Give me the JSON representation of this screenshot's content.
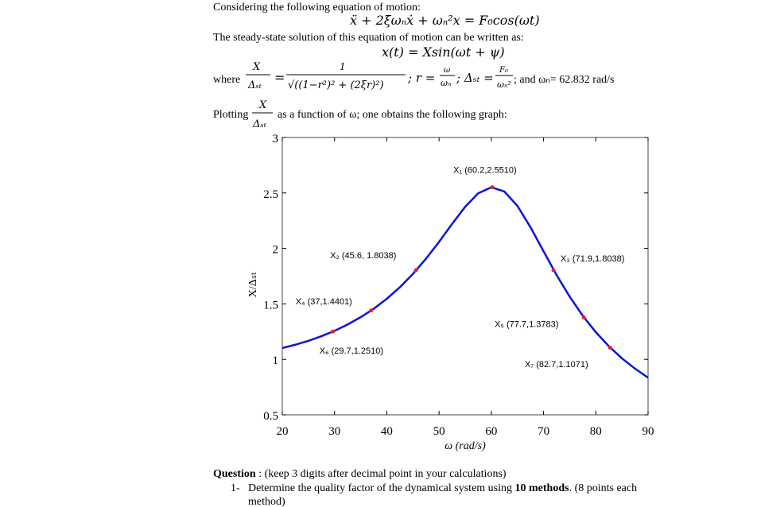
{
  "intro": "Considering the following equation of motion:",
  "equation_motion": "ẍ + 2ξωₙẋ + ωₙ²x = F₀cos(ωt)",
  "steady_state": "The steady-state solution of this equation of motion can be written as:",
  "solution": "x(t) = Xsin(ωt + ψ)",
  "where": {
    "label": "where",
    "lhs_num": "X",
    "lhs_den": "Δₛₜ",
    "eq": "=",
    "rhs_num": "1",
    "rhs_den": "√((1−r²)² + (2ξr)²)",
    "r_def": "; r =",
    "r_num": "ω",
    "r_den": "ωₙ",
    "delta_def": "; Δₛₜ =",
    "d_num": "F₀",
    "d_den": "ωₙ²",
    "tail": "; and ωₙ= 62.832 rad/s"
  },
  "plotting": {
    "label": "Plotting",
    "num": "X",
    "den": "Δₛₜ",
    "text": "as a function of ω; one obtains the following graph:"
  },
  "chart_data": {
    "type": "line",
    "xlabel": "ω (rad/s)",
    "ylabel": "X/Δₛₜ",
    "xlim": [
      20,
      90
    ],
    "ylim": [
      0.5,
      3
    ],
    "xticks": [
      20,
      30,
      40,
      50,
      60,
      70,
      80,
      90
    ],
    "yticks": [
      0.5,
      1,
      1.5,
      2,
      2.5,
      3
    ],
    "series": [
      {
        "color": "#0c14d8",
        "x": [
          20,
          22.5,
          25,
          27.5,
          30,
          32.5,
          35,
          37.5,
          40,
          42.5,
          45,
          47.5,
          50,
          52.5,
          55,
          57.5,
          60,
          62.5,
          65,
          67.5,
          70,
          72.5,
          75,
          77.5,
          80,
          82.5,
          85,
          87.5,
          90
        ],
        "values": [
          1.102,
          1.132,
          1.167,
          1.209,
          1.257,
          1.314,
          1.38,
          1.456,
          1.546,
          1.65,
          1.77,
          1.907,
          2.059,
          2.221,
          2.375,
          2.497,
          2.551,
          2.513,
          2.383,
          2.191,
          1.974,
          1.76,
          1.565,
          1.393,
          1.245,
          1.118,
          1.009,
          0.916,
          0.835
        ]
      }
    ],
    "points": {
      "color": "#e8202a",
      "x": [
        60.2,
        45.6,
        71.9,
        37,
        77.7,
        29.7,
        82.7
      ],
      "values": [
        2.551,
        1.8038,
        1.8038,
        1.4401,
        1.3783,
        1.251,
        1.1071
      ],
      "labels": [
        "X₁ (60.2,2.5510)",
        "X₂ (45.6, 1.8038)",
        "X₃ (71.9,1.8038)",
        "X₄ (37,1.4401)",
        "X₅ (77.7,1.3783)",
        "X₆ (29.7,1.2510)",
        "X₇ (82.7,1.1071)"
      ]
    }
  },
  "question": {
    "label": "Question",
    "text": " : (keep 3 digits after decimal point in your calculations)",
    "items": [
      {
        "number": "1-",
        "text": "Determine the quality factor of the dynamical system using ",
        "bold": "10 methods",
        "rest": ". (8 points each",
        "cont": "method)"
      }
    ]
  }
}
